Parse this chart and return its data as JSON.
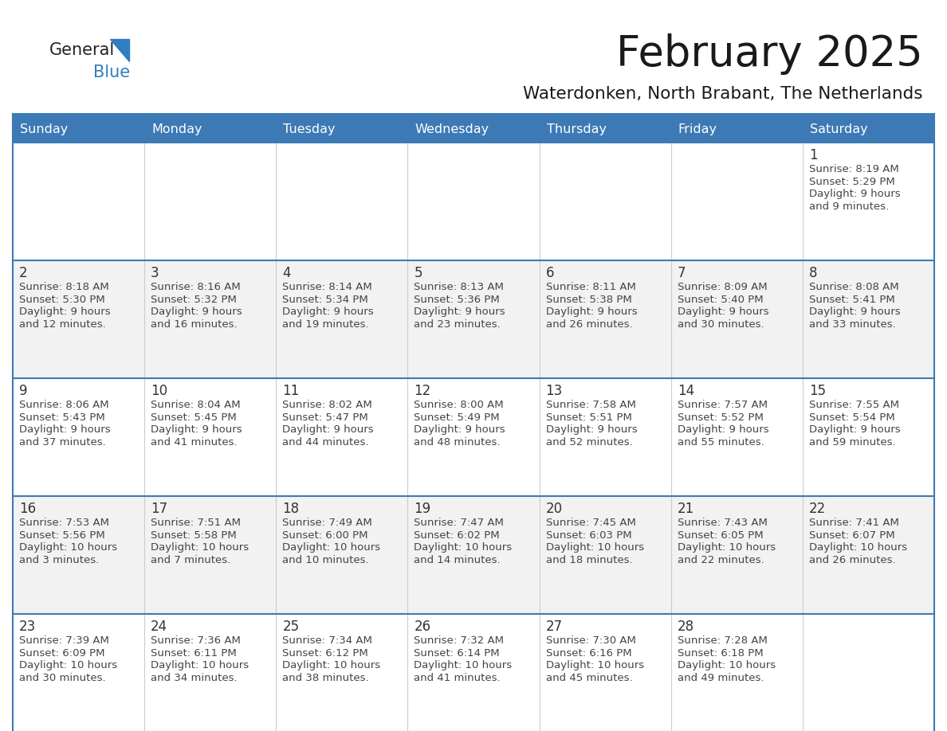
{
  "title": "February 2025",
  "subtitle": "Waterdonken, North Brabant, The Netherlands",
  "days_of_week": [
    "Sunday",
    "Monday",
    "Tuesday",
    "Wednesday",
    "Thursday",
    "Friday",
    "Saturday"
  ],
  "header_bg": "#3d7ab5",
  "header_text": "#ffffff",
  "cell_bg_white": "#ffffff",
  "cell_bg_gray": "#f2f2f2",
  "line_color": "#3d7ab5",
  "text_color": "#444444",
  "date_color": "#333333",
  "logo_general_color": "#222222",
  "logo_blue_color": "#2e7ec1",
  "calendar_data": [
    {
      "day": 1,
      "col": 6,
      "row": 0,
      "sunrise": "8:19 AM",
      "sunset": "5:29 PM",
      "daylight": "9 hours and 9 minutes"
    },
    {
      "day": 2,
      "col": 0,
      "row": 1,
      "sunrise": "8:18 AM",
      "sunset": "5:30 PM",
      "daylight": "9 hours and 12 minutes"
    },
    {
      "day": 3,
      "col": 1,
      "row": 1,
      "sunrise": "8:16 AM",
      "sunset": "5:32 PM",
      "daylight": "9 hours and 16 minutes"
    },
    {
      "day": 4,
      "col": 2,
      "row": 1,
      "sunrise": "8:14 AM",
      "sunset": "5:34 PM",
      "daylight": "9 hours and 19 minutes"
    },
    {
      "day": 5,
      "col": 3,
      "row": 1,
      "sunrise": "8:13 AM",
      "sunset": "5:36 PM",
      "daylight": "9 hours and 23 minutes"
    },
    {
      "day": 6,
      "col": 4,
      "row": 1,
      "sunrise": "8:11 AM",
      "sunset": "5:38 PM",
      "daylight": "9 hours and 26 minutes"
    },
    {
      "day": 7,
      "col": 5,
      "row": 1,
      "sunrise": "8:09 AM",
      "sunset": "5:40 PM",
      "daylight": "9 hours and 30 minutes"
    },
    {
      "day": 8,
      "col": 6,
      "row": 1,
      "sunrise": "8:08 AM",
      "sunset": "5:41 PM",
      "daylight": "9 hours and 33 minutes"
    },
    {
      "day": 9,
      "col": 0,
      "row": 2,
      "sunrise": "8:06 AM",
      "sunset": "5:43 PM",
      "daylight": "9 hours and 37 minutes"
    },
    {
      "day": 10,
      "col": 1,
      "row": 2,
      "sunrise": "8:04 AM",
      "sunset": "5:45 PM",
      "daylight": "9 hours and 41 minutes"
    },
    {
      "day": 11,
      "col": 2,
      "row": 2,
      "sunrise": "8:02 AM",
      "sunset": "5:47 PM",
      "daylight": "9 hours and 44 minutes"
    },
    {
      "day": 12,
      "col": 3,
      "row": 2,
      "sunrise": "8:00 AM",
      "sunset": "5:49 PM",
      "daylight": "9 hours and 48 minutes"
    },
    {
      "day": 13,
      "col": 4,
      "row": 2,
      "sunrise": "7:58 AM",
      "sunset": "5:51 PM",
      "daylight": "9 hours and 52 minutes"
    },
    {
      "day": 14,
      "col": 5,
      "row": 2,
      "sunrise": "7:57 AM",
      "sunset": "5:52 PM",
      "daylight": "9 hours and 55 minutes"
    },
    {
      "day": 15,
      "col": 6,
      "row": 2,
      "sunrise": "7:55 AM",
      "sunset": "5:54 PM",
      "daylight": "9 hours and 59 minutes"
    },
    {
      "day": 16,
      "col": 0,
      "row": 3,
      "sunrise": "7:53 AM",
      "sunset": "5:56 PM",
      "daylight": "10 hours and 3 minutes"
    },
    {
      "day": 17,
      "col": 1,
      "row": 3,
      "sunrise": "7:51 AM",
      "sunset": "5:58 PM",
      "daylight": "10 hours and 7 minutes"
    },
    {
      "day": 18,
      "col": 2,
      "row": 3,
      "sunrise": "7:49 AM",
      "sunset": "6:00 PM",
      "daylight": "10 hours and 10 minutes"
    },
    {
      "day": 19,
      "col": 3,
      "row": 3,
      "sunrise": "7:47 AM",
      "sunset": "6:02 PM",
      "daylight": "10 hours and 14 minutes"
    },
    {
      "day": 20,
      "col": 4,
      "row": 3,
      "sunrise": "7:45 AM",
      "sunset": "6:03 PM",
      "daylight": "10 hours and 18 minutes"
    },
    {
      "day": 21,
      "col": 5,
      "row": 3,
      "sunrise": "7:43 AM",
      "sunset": "6:05 PM",
      "daylight": "10 hours and 22 minutes"
    },
    {
      "day": 22,
      "col": 6,
      "row": 3,
      "sunrise": "7:41 AM",
      "sunset": "6:07 PM",
      "daylight": "10 hours and 26 minutes"
    },
    {
      "day": 23,
      "col": 0,
      "row": 4,
      "sunrise": "7:39 AM",
      "sunset": "6:09 PM",
      "daylight": "10 hours and 30 minutes"
    },
    {
      "day": 24,
      "col": 1,
      "row": 4,
      "sunrise": "7:36 AM",
      "sunset": "6:11 PM",
      "daylight": "10 hours and 34 minutes"
    },
    {
      "day": 25,
      "col": 2,
      "row": 4,
      "sunrise": "7:34 AM",
      "sunset": "6:12 PM",
      "daylight": "10 hours and 38 minutes"
    },
    {
      "day": 26,
      "col": 3,
      "row": 4,
      "sunrise": "7:32 AM",
      "sunset": "6:14 PM",
      "daylight": "10 hours and 41 minutes"
    },
    {
      "day": 27,
      "col": 4,
      "row": 4,
      "sunrise": "7:30 AM",
      "sunset": "6:16 PM",
      "daylight": "10 hours and 45 minutes"
    },
    {
      "day": 28,
      "col": 5,
      "row": 4,
      "sunrise": "7:28 AM",
      "sunset": "6:18 PM",
      "daylight": "10 hours and 49 minutes"
    }
  ]
}
